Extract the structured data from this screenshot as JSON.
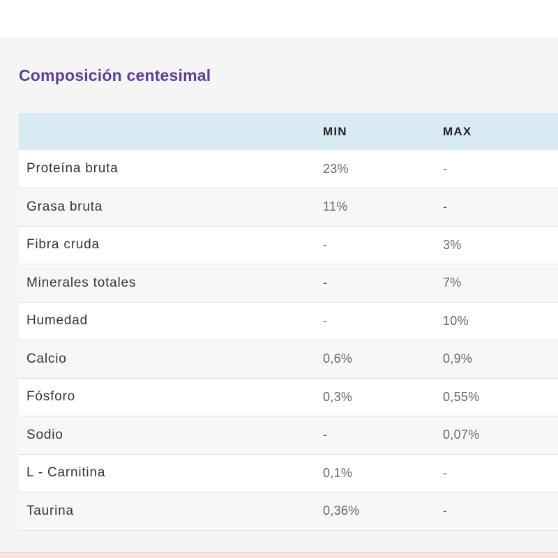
{
  "section": {
    "title": "Composición centesimal"
  },
  "table": {
    "headers": [
      "",
      "MIN",
      "MAX"
    ],
    "rows": [
      {
        "name": "Proteína bruta",
        "min": "23%",
        "max": "-"
      },
      {
        "name": "Grasa bruta",
        "min": "11%",
        "max": "-"
      },
      {
        "name": "Fibra cruda",
        "min": "-",
        "max": "3%"
      },
      {
        "name": "Minerales totales",
        "min": "-",
        "max": "7%"
      },
      {
        "name": "Humedad",
        "min": "-",
        "max": "10%"
      },
      {
        "name": "Calcio",
        "min": "0,6%",
        "max": "0,9%"
      },
      {
        "name": "Fósforo",
        "min": "0,3%",
        "max": "0,55%"
      },
      {
        "name": "Sodio",
        "min": "-",
        "max": "0,07%"
      },
      {
        "name": "L - Carnitina",
        "min": "0,1%",
        "max": "-"
      },
      {
        "name": "Taurina",
        "min": "0,36%",
        "max": "-"
      }
    ]
  },
  "colors": {
    "title": "#5b3f96",
    "header_bg": "#d8ebf4",
    "panel_bg": "#f5f5f5"
  }
}
